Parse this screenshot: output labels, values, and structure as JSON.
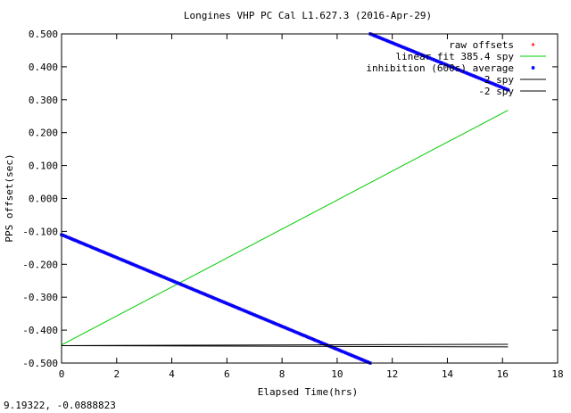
{
  "chart_data": {
    "type": "line",
    "title": "Longines VHP PC Cal L1.627.3 (2016-Apr-29)",
    "xlabel": "Elapsed Time(hrs)",
    "ylabel": "PPS offset(sec)",
    "xlim": [
      0,
      18
    ],
    "ylim": [
      -0.5,
      0.5
    ],
    "x_ticks": [
      0,
      2,
      4,
      6,
      8,
      10,
      12,
      14,
      16,
      18
    ],
    "y_ticks": [
      -0.5,
      -0.4,
      -0.3,
      -0.2,
      -0.1,
      0.0,
      0.1,
      0.2,
      0.3,
      0.4,
      0.5
    ],
    "x_tick_labels": [
      "0",
      "2",
      "4",
      "6",
      "8",
      "10",
      "12",
      "14",
      "16",
      "18"
    ],
    "y_tick_labels": [
      "-0.500",
      "-0.400",
      "-0.300",
      "-0.200",
      "-0.100",
      "0.000",
      "0.100",
      "0.200",
      "0.300",
      "0.400",
      "0.500"
    ],
    "grid": false,
    "legend_position": "top-right",
    "series": [
      {
        "name": "raw offsets",
        "style": "points",
        "marker": "plus",
        "color": "#ff0000",
        "segments": [
          {
            "x": [
              0.0,
              11.2
            ],
            "y": [
              -0.11,
              -0.5
            ]
          },
          {
            "x": [
              11.2,
              16.2
            ],
            "y": [
              0.5,
              0.33
            ]
          }
        ]
      },
      {
        "name": "linear fit 385.4 spy",
        "style": "line",
        "color": "#00cc00",
        "x": [
          0.0,
          16.2
        ],
        "y": [
          -0.445,
          0.268
        ]
      },
      {
        "name": "inhibition (600s) average",
        "style": "points",
        "marker": "star",
        "color": "#0000ff",
        "segments": [
          {
            "x": [
              0.0,
              11.2
            ],
            "y": [
              -0.11,
              -0.5
            ]
          },
          {
            "x": [
              11.2,
              16.2
            ],
            "y": [
              0.5,
              0.33
            ]
          }
        ]
      },
      {
        "name": "2 spy",
        "style": "line",
        "color": "#000000",
        "x": [
          0.0,
          16.2
        ],
        "y": [
          -0.447,
          -0.443
        ]
      },
      {
        "name": "-2 spy",
        "style": "line",
        "color": "#000000",
        "x": [
          0.0,
          16.2
        ],
        "y": [
          -0.447,
          -0.451
        ]
      }
    ]
  },
  "status": {
    "cursor_readout": "9.19322, -0.0888823"
  }
}
